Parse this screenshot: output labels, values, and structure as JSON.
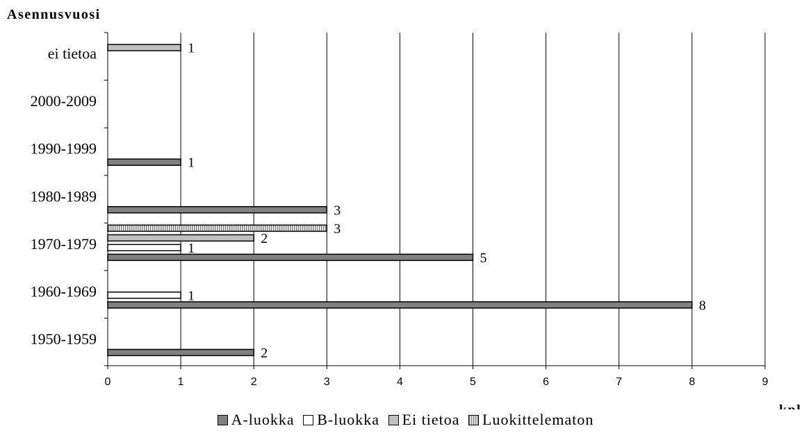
{
  "chart_data": {
    "type": "bar",
    "orientation": "horizontal",
    "ylabel": "Asennusvuosi",
    "xlabel": "kpl",
    "xlim": [
      0,
      9
    ],
    "xticks": [
      "0",
      "1",
      "2",
      "3",
      "4",
      "5",
      "6",
      "7",
      "8",
      "9"
    ],
    "categories": [
      "1950-1959",
      "1960-1969",
      "1970-1979",
      "1980-1989",
      "1990-1999",
      "2000-2009",
      "ei tietoa"
    ],
    "series": [
      {
        "name": "A-luokka",
        "color": "#808080",
        "pattern": "solid",
        "values": [
          2,
          8,
          5,
          3,
          1,
          0,
          0
        ]
      },
      {
        "name": "B-luokka",
        "color": "#ffffff",
        "pattern": "solid",
        "values": [
          0,
          1,
          1,
          0,
          0,
          0,
          0
        ]
      },
      {
        "name": "Ei tietoa",
        "color": "#c0c0c0",
        "pattern": "solid",
        "values": [
          0,
          0,
          2,
          0,
          0,
          0,
          1
        ]
      },
      {
        "name": "Luokittelematon",
        "color": "#d9d9d9",
        "pattern": "vertical-stripes",
        "values": [
          0,
          0,
          3,
          0,
          0,
          0,
          0
        ]
      }
    ],
    "grid": "vertical",
    "legend_position": "bottom"
  }
}
